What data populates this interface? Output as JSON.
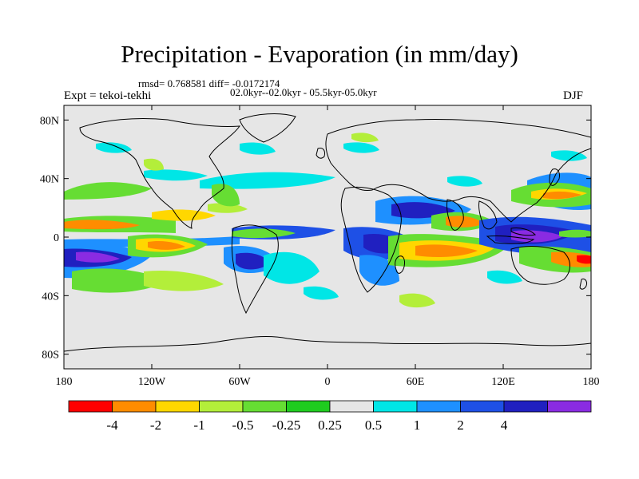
{
  "title": "Precipitation - Evaporation (in mm/day)",
  "stats_line": "rmsd= 0.768581 diff= -0.0172174",
  "period_line": "02.0kyr--02.0kyr - 05.5kyr-05.0kyr",
  "experiment": "Expt = tekoi-tekhi",
  "season": "DJF",
  "chart_data": {
    "type": "heatmap",
    "title": "Precipitation - Evaporation (in mm/day)",
    "x_ticks": [
      "180",
      "120W",
      "60W",
      "0",
      "60E",
      "120E",
      "180"
    ],
    "y_ticks": [
      "80N",
      "40N",
      "0",
      "40S",
      "80S"
    ],
    "xlim": [
      -180,
      180
    ],
    "ylim": [
      -90,
      90
    ],
    "colorbar": {
      "labels": [
        "-4",
        "-2",
        "-1",
        "-0.5",
        "-0.25",
        "0.25",
        "0.5",
        "1",
        "2",
        "4"
      ],
      "colors": [
        "#ff0000",
        "#ff8c00",
        "#ffd700",
        "#b3ee3a",
        "#66dd33",
        "#1fcc1f",
        "#e6e6e6",
        "#00e6e6",
        "#1e90ff",
        "#1e50e6",
        "#2020c0",
        "#8a2be2"
      ]
    }
  }
}
